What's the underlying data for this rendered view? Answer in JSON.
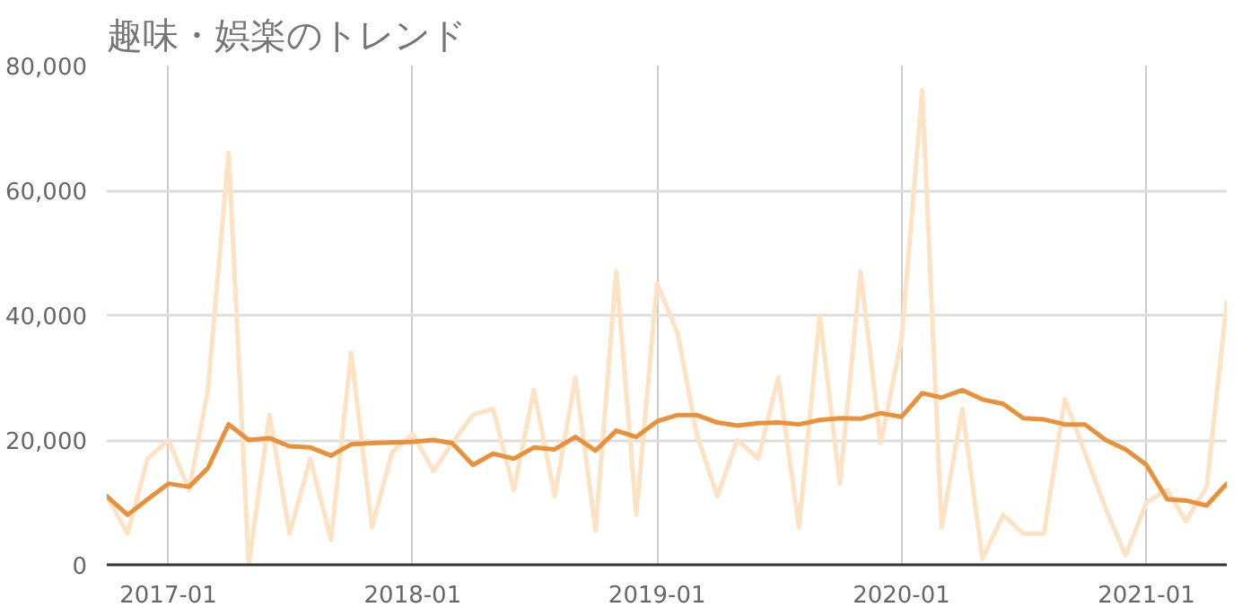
{
  "chart_data": {
    "type": "line",
    "title": "趣味・娯楽のトレンド",
    "x": [
      "2016-10",
      "2016-11",
      "2016-12",
      "2017-01",
      "2017-02",
      "2017-03",
      "2017-04",
      "2017-05",
      "2017-06",
      "2017-07",
      "2017-08",
      "2017-09",
      "2017-10",
      "2017-11",
      "2017-12",
      "2018-01",
      "2018-02",
      "2018-03",
      "2018-04",
      "2018-05",
      "2018-06",
      "2018-07",
      "2018-08",
      "2018-09",
      "2018-10",
      "2018-11",
      "2018-12",
      "2019-01",
      "2019-02",
      "2019-03",
      "2019-04",
      "2019-05",
      "2019-06",
      "2019-07",
      "2019-08",
      "2019-09",
      "2019-10",
      "2019-11",
      "2019-12",
      "2020-01",
      "2020-02",
      "2020-03",
      "2020-04",
      "2020-05",
      "2020-06",
      "2020-07",
      "2020-08",
      "2020-09",
      "2020-10",
      "2020-11",
      "2020-12",
      "2021-01",
      "2021-02",
      "2021-03",
      "2021-04",
      "2021-05"
    ],
    "series": [
      {
        "color": "#fde2c4",
        "values": [
          11000,
          5000,
          17000,
          20000,
          12000,
          28000,
          66000,
          0,
          24000,
          5000,
          17000,
          4000,
          34000,
          6000,
          18000,
          21000,
          15000,
          19500,
          24000,
          25000,
          12000,
          28000,
          11000,
          30000,
          5500,
          47000,
          8000,
          45000,
          37000,
          21000,
          11000,
          20000,
          17000,
          30000,
          6000,
          40000,
          13000,
          47000,
          19500,
          36000,
          76000,
          6000,
          25000,
          1000,
          8000,
          5000,
          5000,
          26500,
          18000,
          9000,
          1500,
          10000,
          12000,
          7000,
          12500,
          42000
        ]
      },
      {
        "color": "#e8913a",
        "values": [
          11000,
          8000,
          10500,
          13000,
          12500,
          15500,
          22500,
          20000,
          20300,
          19000,
          18800,
          17500,
          19300,
          19500,
          19600,
          19700,
          20000,
          19500,
          16000,
          17800,
          17000,
          18800,
          18500,
          20500,
          18300,
          21500,
          20500,
          23000,
          24000,
          24000,
          22800,
          22300,
          22700,
          22800,
          22500,
          23200,
          23500,
          23400,
          24300,
          23700,
          27500,
          26800,
          28000,
          26500,
          25800,
          23500,
          23300,
          22500,
          22500,
          20000,
          18500,
          16000,
          10500,
          10300,
          9500,
          13000
        ]
      }
    ],
    "xlim": [
      "2016-10",
      "2021-05"
    ],
    "xticks": [
      "2017-01",
      "2018-01",
      "2019-01",
      "2020-01",
      "2021-01"
    ],
    "ylim": [
      0,
      80000
    ],
    "yticks": [
      0,
      {
        "value": 20000,
        "label": "20,000"
      },
      {
        "value": 40000,
        "label": "40,000"
      },
      {
        "value": 60000,
        "label": "60,000"
      },
      {
        "value": 80000,
        "label": "80,000"
      }
    ],
    "grid": true,
    "line_style": "solid"
  }
}
